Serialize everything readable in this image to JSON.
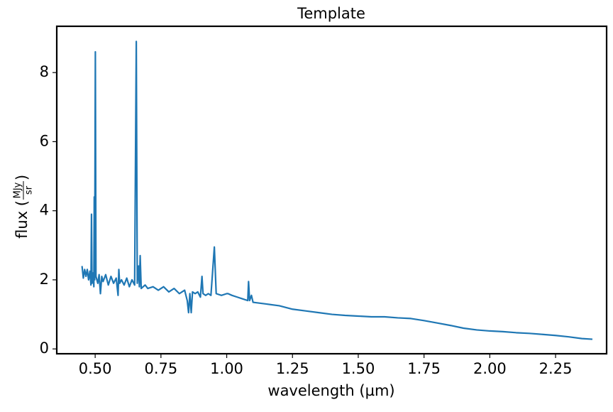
{
  "chart_data": {
    "type": "line",
    "title": "Template",
    "xlabel": "wavelength (µm)",
    "ylabel_prefix": "flux (",
    "ylabel_unit_numerator": "MJy",
    "ylabel_unit_denominator": "sr",
    "ylabel_suffix": ")",
    "xlim": [
      0.354,
      2.444
    ],
    "ylim": [
      -0.14,
      9.34
    ],
    "xticks": [
      {
        "value": 0.5,
        "label": "0.50"
      },
      {
        "value": 0.75,
        "label": "0.75"
      },
      {
        "value": 1.0,
        "label": "1.00"
      },
      {
        "value": 1.25,
        "label": "1.25"
      },
      {
        "value": 1.5,
        "label": "1.50"
      },
      {
        "value": 1.75,
        "label": "1.75"
      },
      {
        "value": 2.0,
        "label": "2.00"
      },
      {
        "value": 2.25,
        "label": "2.25"
      }
    ],
    "yticks": [
      0,
      2,
      4,
      6,
      8
    ],
    "x": [
      0.45,
      0.455,
      0.46,
      0.465,
      0.47,
      0.475,
      0.48,
      0.484,
      0.486,
      0.488,
      0.492,
      0.495,
      0.4965,
      0.498,
      0.5007,
      0.503,
      0.51,
      0.515,
      0.52,
      0.525,
      0.53,
      0.54,
      0.55,
      0.56,
      0.57,
      0.58,
      0.587,
      0.59,
      0.593,
      0.6,
      0.61,
      0.62,
      0.63,
      0.64,
      0.65,
      0.6563,
      0.66,
      0.665,
      0.668,
      0.671,
      0.675,
      0.69,
      0.7,
      0.72,
      0.74,
      0.76,
      0.78,
      0.8,
      0.82,
      0.84,
      0.85,
      0.855,
      0.86,
      0.865,
      0.87,
      0.88,
      0.89,
      0.9,
      0.906,
      0.91,
      0.92,
      0.93,
      0.94,
      0.953,
      0.96,
      0.98,
      1.0,
      1.005,
      1.02,
      1.04,
      1.06,
      1.08,
      1.083,
      1.087,
      1.094,
      1.1,
      1.15,
      1.2,
      1.25,
      1.3,
      1.35,
      1.4,
      1.45,
      1.5,
      1.55,
      1.6,
      1.65,
      1.7,
      1.75,
      1.8,
      1.85,
      1.9,
      1.95,
      2.0,
      2.05,
      2.1,
      2.15,
      2.2,
      2.25,
      2.3,
      2.35,
      2.39
    ],
    "series": [
      {
        "color": "#1f77b4",
        "values": [
          2.4,
          2.05,
          2.3,
          2.1,
          2.3,
          2.0,
          2.25,
          1.85,
          3.9,
          1.9,
          2.2,
          1.8,
          4.4,
          2.0,
          8.6,
          2.1,
          1.9,
          2.15,
          1.6,
          2.1,
          1.95,
          2.15,
          1.85,
          2.1,
          1.9,
          2.05,
          1.55,
          2.3,
          1.9,
          2.0,
          1.85,
          2.05,
          1.8,
          2.0,
          1.85,
          8.9,
          1.9,
          2.4,
          1.8,
          2.7,
          1.75,
          1.85,
          1.75,
          1.8,
          1.7,
          1.8,
          1.65,
          1.75,
          1.6,
          1.7,
          1.4,
          1.05,
          1.6,
          1.05,
          1.65,
          1.6,
          1.65,
          1.5,
          2.1,
          1.6,
          1.55,
          1.6,
          1.55,
          2.95,
          1.6,
          1.55,
          1.6,
          1.6,
          1.55,
          1.5,
          1.45,
          1.4,
          1.95,
          1.4,
          1.55,
          1.35,
          1.3,
          1.25,
          1.15,
          1.1,
          1.05,
          1.0,
          0.97,
          0.95,
          0.93,
          0.93,
          0.9,
          0.88,
          0.82,
          0.75,
          0.68,
          0.6,
          0.55,
          0.52,
          0.5,
          0.47,
          0.45,
          0.42,
          0.39,
          0.35,
          0.3,
          0.28
        ]
      }
    ]
  }
}
